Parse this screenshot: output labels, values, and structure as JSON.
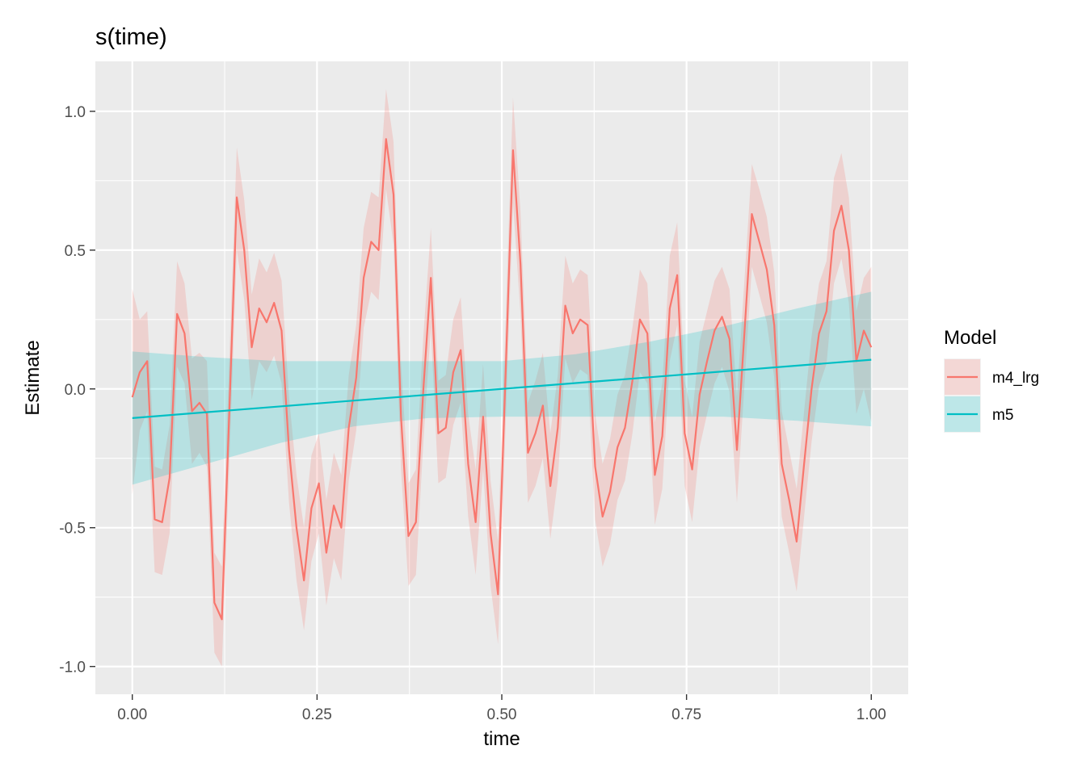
{
  "chart_data": {
    "type": "line",
    "title": "s(time)",
    "xlabel": "time",
    "ylabel": "Estimate",
    "xlim": [
      -0.05,
      1.05
    ],
    "ylim": [
      -1.1,
      1.18
    ],
    "xticks": [
      0.0,
      0.25,
      0.5,
      0.75,
      1.0
    ],
    "xtick_labels": [
      "0.00",
      "0.25",
      "0.50",
      "0.75",
      "1.00"
    ],
    "yticks": [
      -1.0,
      -0.5,
      0.0,
      0.5,
      1.0
    ],
    "ytick_labels": [
      "-1.0",
      "-0.5",
      "0.0",
      "0.5",
      "1.0"
    ],
    "grid": true,
    "legend": {
      "title": "Model",
      "position": "right"
    },
    "series": [
      {
        "name": "m4_lrg",
        "color": "#F8766D",
        "x": [
          0.0,
          0.0101,
          0.0202,
          0.0303,
          0.0404,
          0.0505,
          0.0606,
          0.0707,
          0.0808,
          0.0909,
          0.101,
          0.1111,
          0.1212,
          0.1313,
          0.1414,
          0.1515,
          0.1616,
          0.1717,
          0.1818,
          0.1919,
          0.202,
          0.2121,
          0.2222,
          0.2323,
          0.2424,
          0.2525,
          0.2626,
          0.2727,
          0.2828,
          0.2929,
          0.303,
          0.3131,
          0.3232,
          0.3333,
          0.3434,
          0.3535,
          0.3636,
          0.3737,
          0.3838,
          0.3939,
          0.404,
          0.4141,
          0.4242,
          0.4343,
          0.4444,
          0.4545,
          0.4646,
          0.4747,
          0.4848,
          0.4949,
          0.5051,
          0.5152,
          0.5253,
          0.5354,
          0.5455,
          0.5556,
          0.5657,
          0.5758,
          0.5859,
          0.596,
          0.6061,
          0.6162,
          0.6263,
          0.6364,
          0.6465,
          0.6566,
          0.6667,
          0.6768,
          0.6869,
          0.697,
          0.7071,
          0.7172,
          0.7273,
          0.7374,
          0.7475,
          0.7576,
          0.7677,
          0.7778,
          0.7879,
          0.798,
          0.8081,
          0.8182,
          0.8283,
          0.8384,
          0.8485,
          0.8586,
          0.8687,
          0.8788,
          0.8889,
          0.899,
          0.9091,
          0.9192,
          0.9293,
          0.9394,
          0.9495,
          0.9596,
          0.9697,
          0.9798,
          0.9899,
          1.0
        ],
        "y": [
          -0.03,
          0.06,
          0.1,
          -0.47,
          -0.48,
          -0.32,
          0.27,
          0.2,
          -0.08,
          -0.05,
          -0.09,
          -0.77,
          -0.83,
          -0.08,
          0.69,
          0.5,
          0.15,
          0.29,
          0.24,
          0.31,
          0.21,
          -0.22,
          -0.5,
          -0.69,
          -0.43,
          -0.34,
          -0.59,
          -0.42,
          -0.5,
          -0.14,
          0.04,
          0.4,
          0.53,
          0.5,
          0.9,
          0.7,
          -0.1,
          -0.53,
          -0.48,
          0.0,
          0.4,
          -0.16,
          -0.14,
          0.06,
          0.14,
          -0.27,
          -0.48,
          -0.1,
          -0.52,
          -0.74,
          0.05,
          0.86,
          0.45,
          -0.23,
          -0.16,
          -0.06,
          -0.35,
          -0.14,
          0.3,
          0.2,
          0.25,
          0.23,
          -0.28,
          -0.46,
          -0.37,
          -0.21,
          -0.14,
          0.03,
          0.25,
          0.2,
          -0.31,
          -0.17,
          0.29,
          0.41,
          -0.16,
          -0.29,
          -0.02,
          0.1,
          0.21,
          0.26,
          0.18,
          -0.22,
          0.2,
          0.63,
          0.53,
          0.43,
          0.23,
          -0.27,
          -0.4,
          -0.55,
          -0.27,
          0.0,
          0.2,
          0.28,
          0.57,
          0.66,
          0.5,
          0.1,
          0.21,
          0.15
        ],
        "lower": [
          -0.38,
          -0.15,
          -0.08,
          -0.66,
          -0.67,
          -0.52,
          0.08,
          0.02,
          -0.27,
          -0.23,
          -0.28,
          -0.95,
          -1.0,
          -0.27,
          0.5,
          0.32,
          -0.04,
          0.1,
          0.06,
          0.12,
          0.02,
          -0.41,
          -0.69,
          -0.87,
          -0.62,
          -0.52,
          -0.78,
          -0.61,
          -0.69,
          -0.33,
          -0.15,
          0.22,
          0.35,
          0.32,
          0.72,
          0.52,
          -0.29,
          -0.71,
          -0.67,
          -0.19,
          0.22,
          -0.34,
          -0.32,
          -0.13,
          -0.05,
          -0.46,
          -0.67,
          -0.29,
          -0.71,
          -0.92,
          -0.14,
          0.67,
          0.27,
          -0.41,
          -0.35,
          -0.25,
          -0.54,
          -0.33,
          0.11,
          0.02,
          0.07,
          0.05,
          -0.47,
          -0.64,
          -0.56,
          -0.4,
          -0.33,
          -0.16,
          0.06,
          0.02,
          -0.49,
          -0.36,
          0.1,
          0.23,
          -0.35,
          -0.48,
          -0.21,
          -0.09,
          0.02,
          0.08,
          -0.01,
          -0.41,
          0.01,
          0.44,
          0.34,
          0.24,
          0.04,
          -0.46,
          -0.59,
          -0.73,
          -0.46,
          -0.19,
          0.01,
          0.09,
          0.38,
          0.47,
          0.31,
          -0.09,
          0.0,
          -0.12
        ],
        "upper": [
          0.36,
          0.25,
          0.28,
          -0.28,
          -0.29,
          -0.13,
          0.46,
          0.38,
          0.11,
          0.13,
          0.1,
          -0.59,
          -0.64,
          0.11,
          0.87,
          0.68,
          0.34,
          0.47,
          0.42,
          0.49,
          0.39,
          -0.03,
          -0.31,
          -0.5,
          -0.24,
          -0.16,
          -0.4,
          -0.23,
          -0.31,
          0.05,
          0.23,
          0.58,
          0.71,
          0.69,
          1.08,
          0.89,
          0.09,
          -0.34,
          -0.29,
          0.19,
          0.58,
          0.03,
          0.05,
          0.25,
          0.33,
          -0.09,
          -0.29,
          0.09,
          -0.33,
          -0.55,
          0.24,
          1.05,
          0.64,
          -0.05,
          0.03,
          0.13,
          -0.16,
          0.05,
          0.48,
          0.38,
          0.43,
          0.41,
          -0.09,
          -0.27,
          -0.18,
          -0.02,
          0.05,
          0.22,
          0.43,
          0.38,
          -0.12,
          0.02,
          0.48,
          0.6,
          0.03,
          -0.1,
          0.17,
          0.28,
          0.39,
          0.44,
          0.36,
          -0.03,
          0.39,
          0.81,
          0.72,
          0.62,
          0.42,
          -0.08,
          -0.22,
          -0.36,
          -0.08,
          0.19,
          0.38,
          0.46,
          0.76,
          0.85,
          0.69,
          0.28,
          0.4,
          0.44
        ]
      },
      {
        "name": "m5",
        "color": "#00BFC4",
        "x": [
          0.0,
          0.1,
          0.2,
          0.3,
          0.4,
          0.5,
          0.6,
          0.7,
          0.8,
          0.9,
          1.0
        ],
        "y": [
          -0.105,
          -0.084,
          -0.063,
          -0.042,
          -0.021,
          0.0,
          0.021,
          0.042,
          0.063,
          0.084,
          0.105
        ],
        "lower": [
          -0.345,
          -0.27,
          -0.195,
          -0.135,
          -0.105,
          -0.1,
          -0.1,
          -0.1,
          -0.1,
          -0.115,
          -0.135
        ],
        "upper": [
          0.135,
          0.115,
          0.1,
          0.1,
          0.1,
          0.1,
          0.125,
          0.17,
          0.225,
          0.29,
          0.35
        ]
      }
    ]
  }
}
